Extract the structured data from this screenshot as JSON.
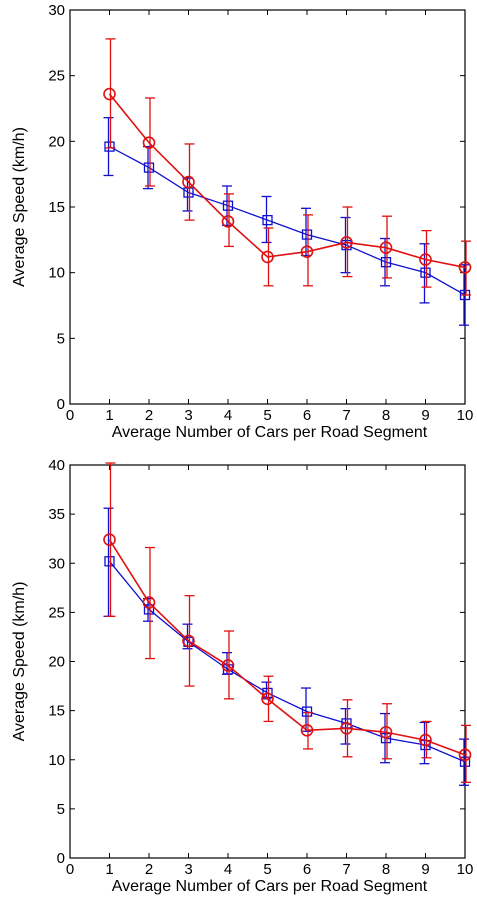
{
  "chart_data": [
    {
      "type": "line",
      "xlabel": "Average Number of Cars per Road Segment",
      "ylabel": "Average Speed (km/h)",
      "xlim": [
        0,
        10
      ],
      "ylim": [
        0,
        30
      ],
      "xticks": [
        0,
        1,
        2,
        3,
        4,
        5,
        6,
        7,
        8,
        9,
        10
      ],
      "yticks": [
        0,
        5,
        10,
        15,
        20,
        25,
        30
      ],
      "x": [
        1,
        2,
        3,
        4,
        5,
        6,
        7,
        8,
        9,
        10
      ],
      "grid": false,
      "series": [
        {
          "color": "#1010d0",
          "marker": "square",
          "values": [
            19.6,
            18.0,
            16.1,
            15.1,
            14.0,
            12.9,
            12.1,
            10.8,
            10.0,
            8.3
          ],
          "err_low": [
            17.4,
            16.4,
            14.7,
            13.6,
            12.3,
            11.3,
            10.0,
            9.0,
            7.7,
            6.0
          ],
          "err_high": [
            21.8,
            19.6,
            17.2,
            16.6,
            15.8,
            14.9,
            14.2,
            12.6,
            12.2,
            10.6
          ]
        },
        {
          "color": "#e01010",
          "marker": "circle",
          "values": [
            23.6,
            19.9,
            16.9,
            13.9,
            11.2,
            11.6,
            12.3,
            11.9,
            11.0,
            10.4
          ],
          "err_low": [
            19.5,
            16.6,
            14.0,
            12.0,
            9.0,
            9.0,
            9.7,
            9.6,
            8.9,
            8.3
          ],
          "err_high": [
            27.8,
            23.3,
            19.8,
            16.0,
            13.4,
            14.4,
            15.0,
            14.3,
            13.2,
            12.4
          ]
        }
      ]
    },
    {
      "type": "line",
      "xlabel": "Average Number of Cars per Road Segment",
      "ylabel": "Average Speed (km/h)",
      "xlim": [
        0,
        10
      ],
      "ylim": [
        0,
        40
      ],
      "xticks": [
        0,
        1,
        2,
        3,
        4,
        5,
        6,
        7,
        8,
        9,
        10
      ],
      "yticks": [
        0,
        5,
        10,
        15,
        20,
        25,
        30,
        35,
        40
      ],
      "x": [
        1,
        2,
        3,
        4,
        5,
        6,
        7,
        8,
        9,
        10
      ],
      "grid": false,
      "series": [
        {
          "color": "#1010d0",
          "marker": "square",
          "values": [
            30.2,
            25.3,
            22.0,
            19.2,
            16.8,
            14.9,
            13.7,
            12.2,
            11.5,
            9.8
          ],
          "err_low": [
            24.6,
            24.1,
            21.3,
            18.7,
            16.2,
            12.9,
            11.6,
            9.7,
            9.6,
            7.4
          ],
          "err_high": [
            35.6,
            26.4,
            23.8,
            20.9,
            17.9,
            17.3,
            15.2,
            14.7,
            13.8,
            12.1
          ]
        },
        {
          "color": "#e01010",
          "marker": "circle",
          "values": [
            32.4,
            26.0,
            22.1,
            19.6,
            16.2,
            13.0,
            13.2,
            12.8,
            12.0,
            10.5
          ],
          "err_low": [
            24.6,
            20.3,
            17.5,
            16.2,
            13.9,
            11.1,
            10.3,
            10.1,
            10.2,
            7.7
          ],
          "err_high": [
            40.2,
            31.6,
            26.7,
            23.1,
            18.5,
            14.8,
            16.1,
            15.7,
            13.9,
            13.5
          ]
        }
      ]
    }
  ]
}
